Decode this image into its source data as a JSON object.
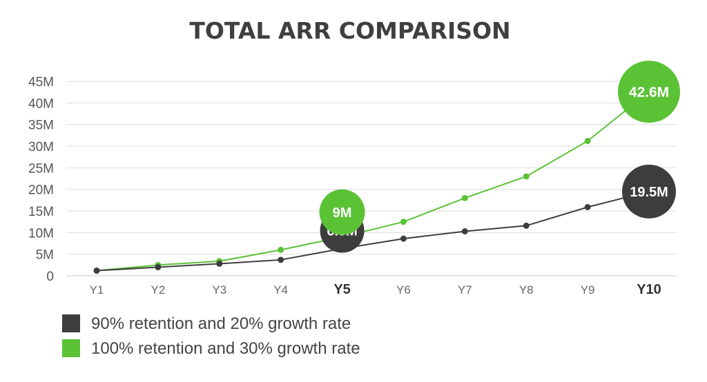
{
  "chart_data": {
    "type": "line",
    "title": "TOTAL ARR COMPARISON",
    "xlabel": "",
    "ylabel": "",
    "categories": [
      "Y1",
      "Y2",
      "Y3",
      "Y4",
      "Y5",
      "Y6",
      "Y7",
      "Y8",
      "Y9",
      "Y10"
    ],
    "emphasized_categories": [
      "Y5",
      "Y10"
    ],
    "y_ticks": [
      "0",
      "5M",
      "10M",
      "15M",
      "20M",
      "25M",
      "30M",
      "35M",
      "40M",
      "45M"
    ],
    "ylim": [
      0,
      45
    ],
    "y_unit": "M",
    "grid": true,
    "legend_position": "bottom-left",
    "series": [
      {
        "name": "90% retention and 20% growth rate",
        "color": "#3d3d3d",
        "values": [
          1.2,
          2.0,
          2.8,
          3.7,
          6.3,
          8.6,
          10.3,
          11.6,
          15.9,
          19.5
        ],
        "callouts": [
          {
            "category": "Y5",
            "label": "6.3M"
          },
          {
            "category": "Y10",
            "label": "19.5M"
          }
        ]
      },
      {
        "name": "100% retention and 30% growth rate",
        "color": "#5bc236",
        "values": [
          1.2,
          2.5,
          3.4,
          6.0,
          9.0,
          12.5,
          18.0,
          23.0,
          31.2,
          42.6
        ],
        "callouts": [
          {
            "category": "Y5",
            "label": "9M"
          },
          {
            "category": "Y10",
            "label": "42.6M"
          }
        ]
      }
    ]
  }
}
